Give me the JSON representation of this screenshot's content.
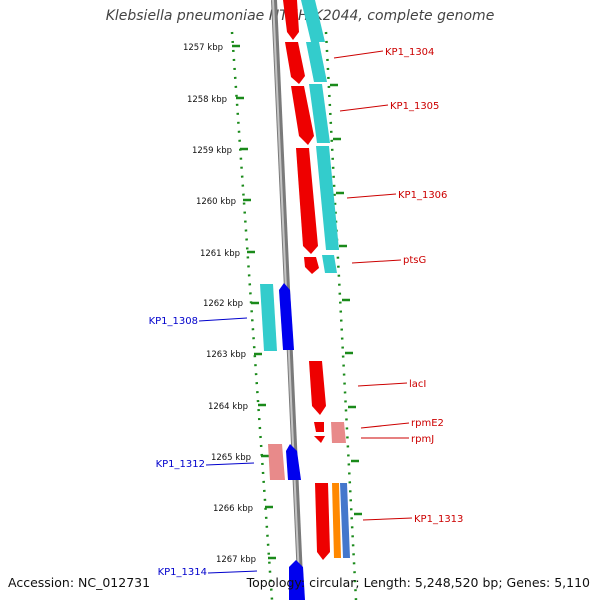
{
  "title": "Klebsiella pneumoniae NTUH-K2044, complete genome",
  "footer": {
    "accession": "Accession: NC_012731",
    "summary": "Topology: circular; Length: 5,248,520 bp; Genes: 5,110"
  },
  "colors": {
    "forward_strand": "#ee0000",
    "reverse_strand": "#0000ee",
    "pseudo_forward": "#e88a8a",
    "cds_band": "#33cccc",
    "ruler": "#1a8a1a",
    "backbone": "#8a8a8a",
    "label_forward": "#cc0000",
    "label_reverse": "#0000cc"
  },
  "ruler_ticks": [
    "1257 kbp",
    "1258 kbp",
    "1259 kbp",
    "1260 kbp",
    "1261 kbp",
    "1262 kbp",
    "1263 kbp",
    "1264 kbp",
    "1265 kbp",
    "1266 kbp",
    "1267 kbp"
  ],
  "gene_labels_forward": [
    "KP1_1304",
    "KP1_1305",
    "KP1_1306",
    "ptsG",
    "lacI",
    "rpmE2",
    "rpmJ",
    "KP1_1313"
  ],
  "gene_labels_reverse": [
    "KP1_1308",
    "KP1_1312",
    "KP1_1314"
  ]
}
